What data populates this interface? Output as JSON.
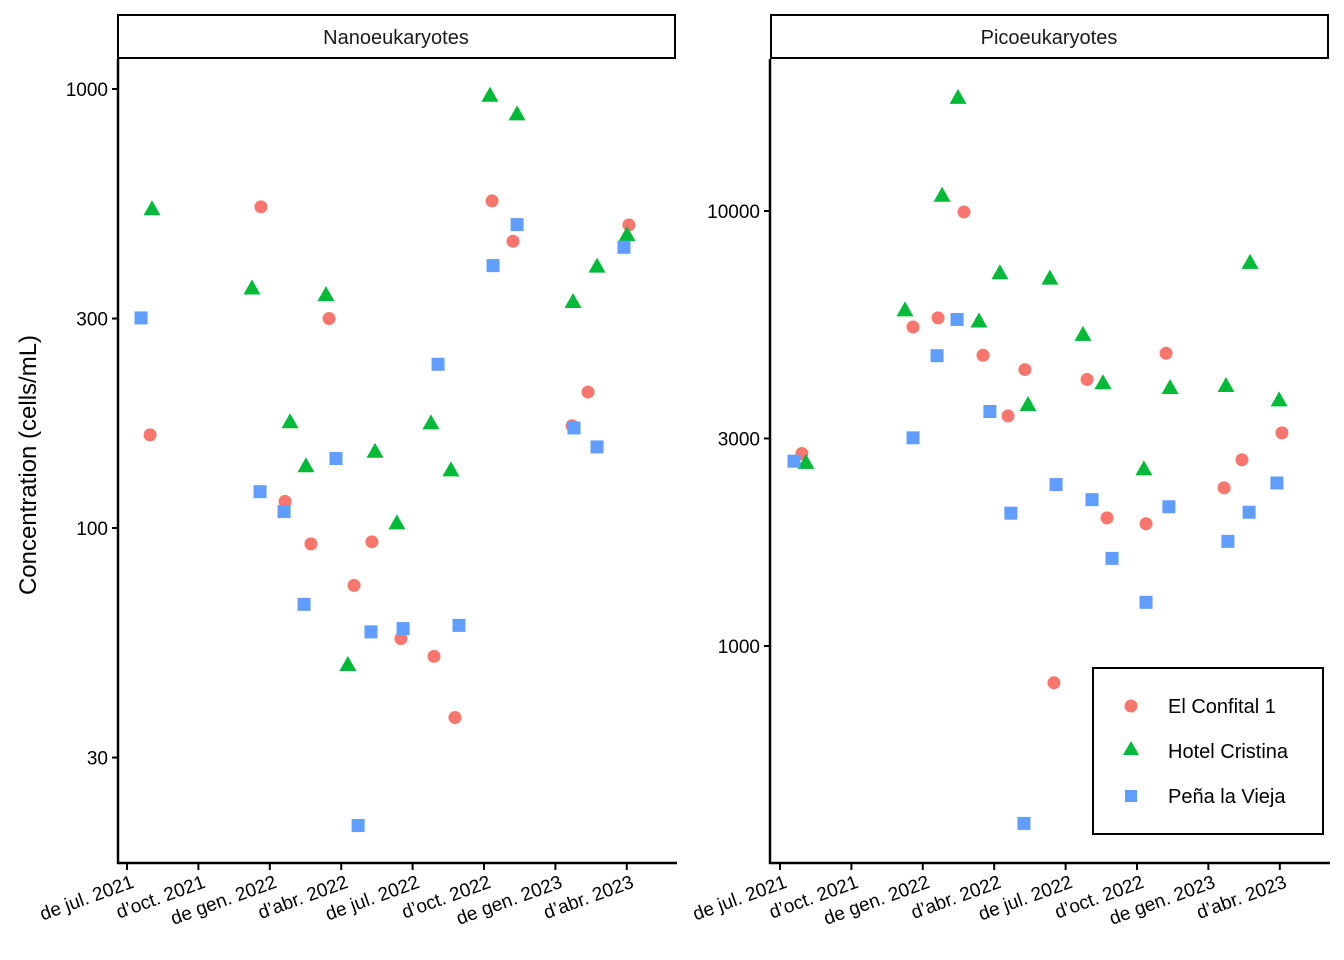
{
  "chart_data": [
    {
      "type": "scatter",
      "panel": "Nanoeukaryotes",
      "ylabel": "Concentration (cells/mL)",
      "yscale": "log10",
      "ylim": [
        17.5,
        1150
      ],
      "yticks": [
        30,
        100,
        300,
        1000
      ],
      "ytick_labels": [
        "30",
        "100",
        "300",
        "1000"
      ],
      "x_unit": "months since July 2021",
      "xlim": [
        -0.5,
        23.1
      ],
      "xticks": [
        0,
        3,
        6,
        9,
        12,
        15,
        18,
        21
      ],
      "xtick_labels": [
        "de jul. 2021",
        "d’oct. 2021",
        "de gen. 2022",
        "d’abr. 2022",
        "de jul. 2022",
        "d’oct. 2022",
        "de gen. 2023",
        "d’abr. 2023"
      ],
      "series": [
        {
          "name": "El Confital 1",
          "shape": "circle",
          "color": "#F8766D",
          "x": [
            0.97,
            5.63,
            6.64,
            7.73,
            8.49,
            9.54,
            10.29,
            11.51,
            12.9,
            13.78,
            15.34,
            16.22,
            18.7,
            19.37,
            21.09
          ],
          "y": [
            163,
            539,
            115,
            92,
            300,
            74,
            93,
            56,
            51,
            37,
            556,
            450,
            171,
            204,
            490
          ]
        },
        {
          "name": "Hotel Cristina",
          "shape": "triangle",
          "color": "#00BA38",
          "x": [
            1.05,
            5.25,
            6.85,
            7.52,
            8.36,
            9.28,
            10.42,
            11.34,
            12.77,
            13.61,
            15.25,
            16.39,
            18.74,
            19.75,
            21.01
          ],
          "y": [
            535,
            353,
            175,
            139,
            341,
            49,
            150,
            103,
            174,
            136,
            970,
            880,
            329,
            396,
            467
          ]
        },
        {
          "name": "Peña la Vieja",
          "shape": "square",
          "color": "#619CFF",
          "x": [
            0.59,
            5.59,
            6.6,
            7.44,
            8.78,
            9.71,
            10.25,
            11.6,
            13.07,
            13.95,
            15.38,
            16.39,
            18.78,
            19.75,
            20.88
          ],
          "y": [
            301,
            121,
            109,
            67,
            144,
            21,
            58,
            59,
            236,
            60,
            396,
            491,
            169,
            153,
            436
          ]
        }
      ]
    },
    {
      "type": "scatter",
      "panel": "Picoeukaryotes",
      "ylabel": "",
      "yscale": "log10",
      "ylim": [
        380,
        17500
      ],
      "yticks": [
        1000,
        3000,
        10000
      ],
      "ytick_labels": [
        "1000",
        "3000",
        "10000"
      ],
      "x_unit": "months since July 2021",
      "xlim": [
        -0.5,
        23.1
      ],
      "xticks": [
        0,
        3,
        6,
        9,
        12,
        15,
        18,
        21
      ],
      "xtick_labels": [
        "de jul. 2021",
        "d’oct. 2021",
        "de gen. 2022",
        "d’abr. 2022",
        "de jul. 2022",
        "d’oct. 2022",
        "de gen. 2023",
        "d’abr. 2023"
      ],
      "series": [
        {
          "name": "El Confital 1",
          "shape": "circle",
          "color": "#F8766D",
          "x": [
            0.92,
            5.59,
            6.64,
            7.73,
            8.53,
            9.58,
            10.29,
            11.51,
            12.9,
            13.74,
            15.38,
            16.22,
            18.66,
            19.41,
            21.09
          ],
          "y": [
            2770,
            5410,
            5680,
            9950,
            4660,
            3380,
            4320,
            823,
            4100,
            1970,
            1910,
            4710,
            2310,
            2680,
            3090
          ]
        },
        {
          "name": "Hotel Cristina",
          "shape": "triangle",
          "color": "#00BA38",
          "x": [
            1.09,
            5.25,
            6.81,
            7.48,
            8.36,
            9.24,
            10.42,
            11.34,
            12.73,
            13.57,
            15.29,
            16.39,
            18.74,
            19.75,
            20.97
          ],
          "y": [
            2650,
            5940,
            10900,
            18300,
            5600,
            7230,
            3600,
            7030,
            5220,
            4040,
            2560,
            3940,
            3980,
            7640,
            3690
          ]
        },
        {
          "name": "Peña la Vieja",
          "shape": "square",
          "color": "#619CFF",
          "x": [
            0.59,
            5.59,
            6.6,
            7.44,
            8.82,
            9.7,
            10.25,
            11.6,
            13.11,
            13.95,
            15.38,
            16.34,
            18.82,
            19.71,
            20.88
          ],
          "y": [
            2660,
            3010,
            4650,
            5630,
            3460,
            2020,
            391,
            2350,
            2170,
            1590,
            1260,
            2090,
            1740,
            2030,
            2370
          ]
        }
      ]
    }
  ],
  "legend": {
    "placement": "bottom-right of right panel",
    "items": [
      {
        "label": "El Confital 1",
        "shape": "circle",
        "color": "#F8766D"
      },
      {
        "label": "Hotel Cristina",
        "shape": "triangle",
        "color": "#00BA38"
      },
      {
        "label": "Peña la Vieja",
        "shape": "square",
        "color": "#619CFF"
      }
    ]
  },
  "y_axis_title": "Concentration (cells/mL)"
}
